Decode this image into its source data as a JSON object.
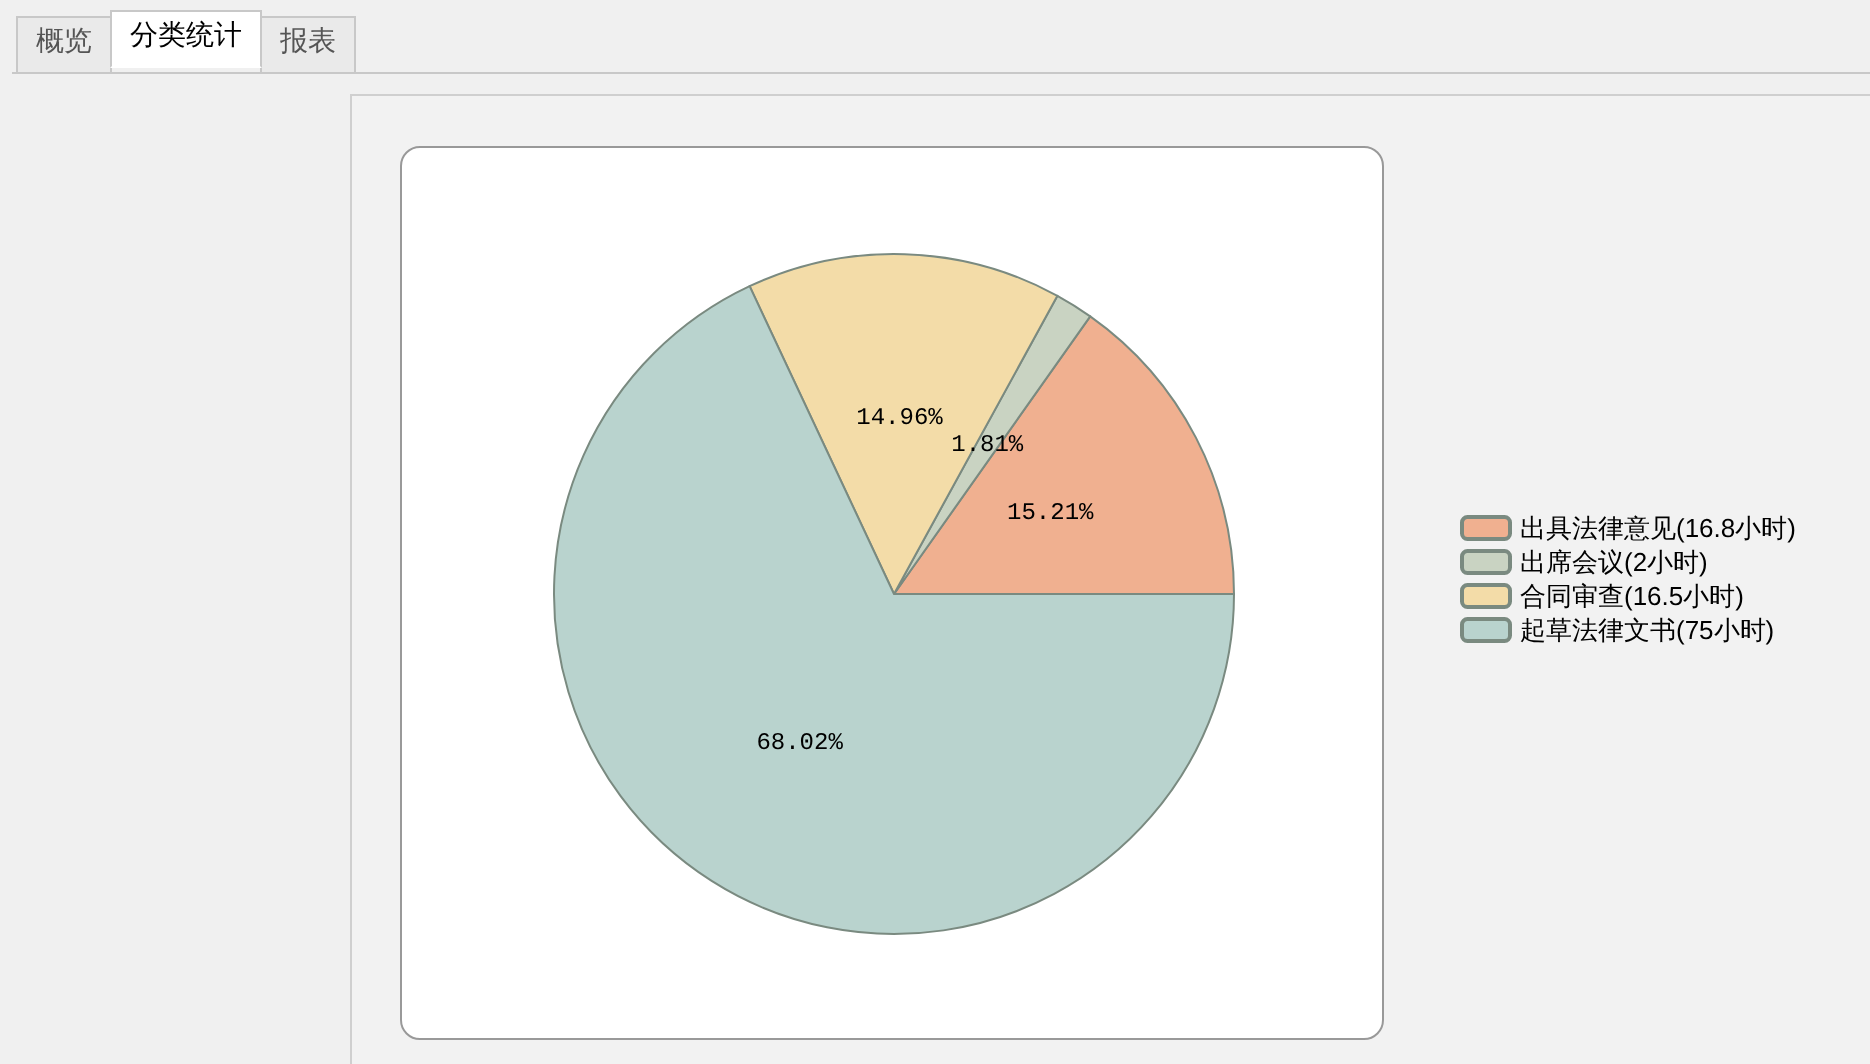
{
  "chart_data": {
    "type": "pie",
    "categories": [
      "出具法律意见(16.8小时)",
      "出席会议(2小时)",
      "合同审查(16.5小时)",
      "起草法律文书(75小时)"
    ],
    "values": [
      15.21,
      1.81,
      14.96,
      68.02
    ],
    "value_labels": [
      "15.21%",
      "1.81%",
      "14.96%",
      "68.02%"
    ],
    "colors": [
      "#f0b090",
      "#c9d3c2",
      "#f3dca8",
      "#b9d3ce"
    ],
    "legend": "right",
    "annotations": [
      "概览",
      "分类统计",
      "报表"
    ]
  }
}
